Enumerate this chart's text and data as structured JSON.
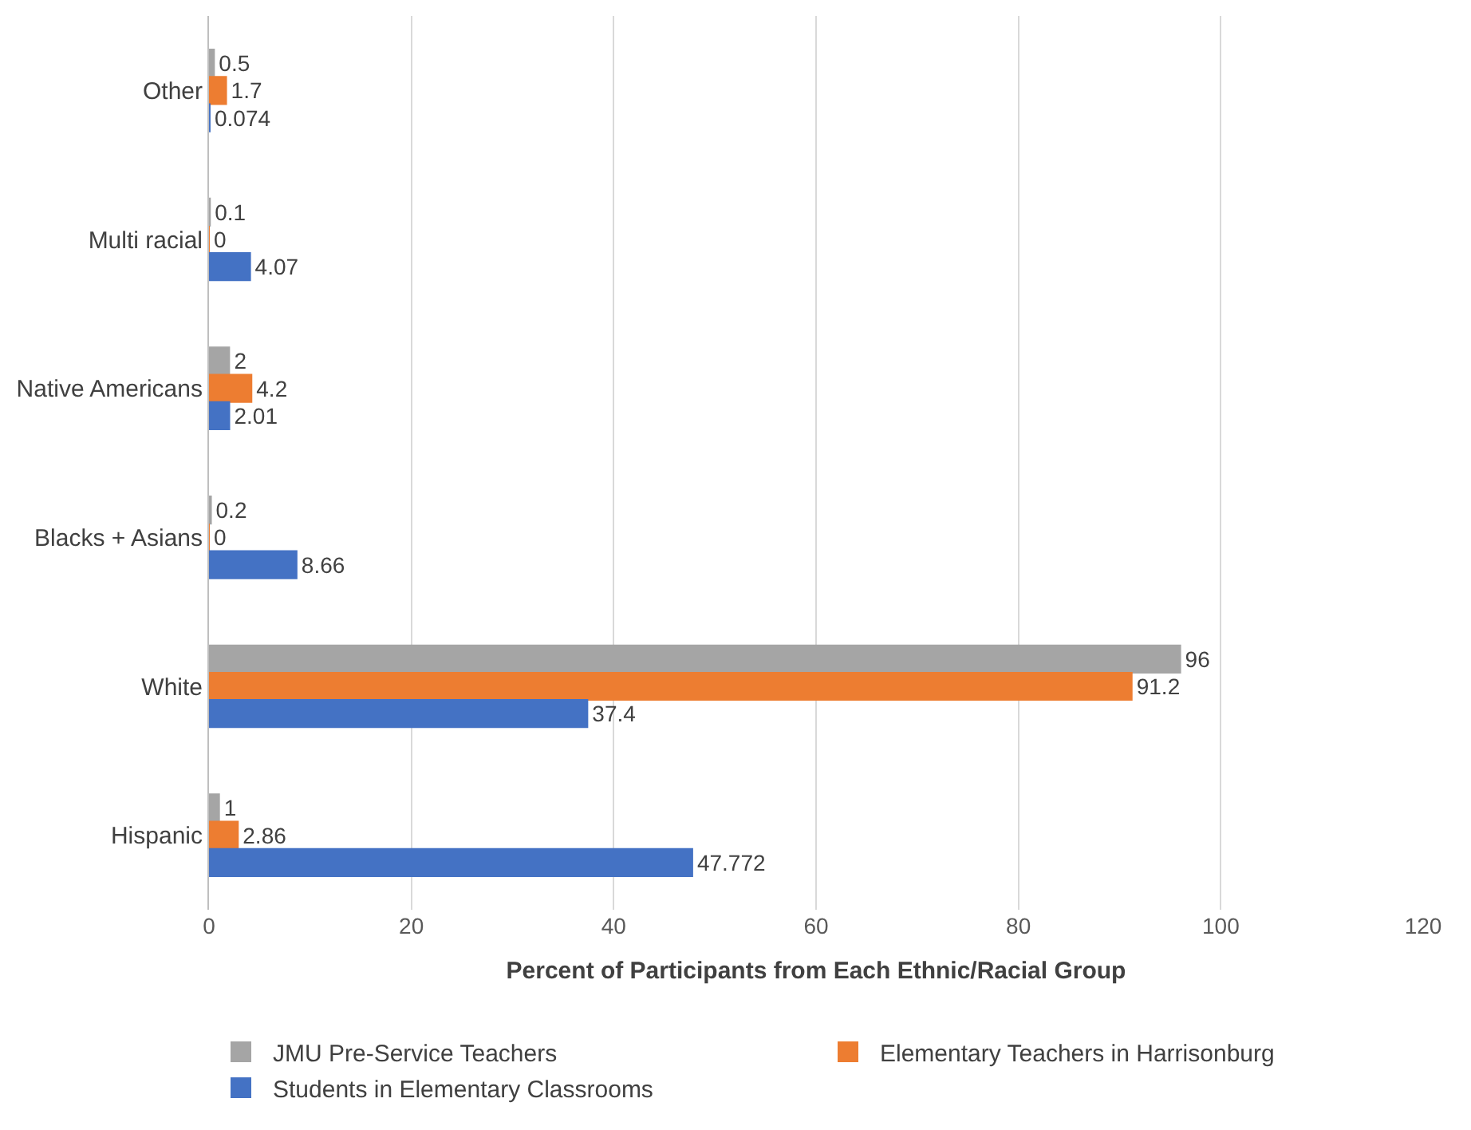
{
  "chart_data": {
    "type": "bar",
    "orientation": "horizontal",
    "xlabel": "Percent of Participants from Each Ethnic/Racial Group",
    "categories": [
      "Other",
      "Multi racial",
      "Native Americans",
      "Blacks + Asians",
      "White",
      "Hispanic"
    ],
    "series": [
      {
        "name": "JMU Pre-Service Teachers",
        "color": "#a5a5a5",
        "values": [
          0.5,
          0.1,
          2,
          0.2,
          96,
          1
        ]
      },
      {
        "name": "Elementary Teachers in Harrisonburg",
        "color": "#ed7d31",
        "values": [
          1.7,
          0,
          4.2,
          0,
          91.2,
          2.86
        ]
      },
      {
        "name": "Students in Elementary Classrooms",
        "color": "#4472c4",
        "values": [
          0.074,
          4.07,
          2.01,
          8.66,
          37.4,
          47.772
        ]
      }
    ],
    "xlim": [
      0,
      120
    ],
    "xticks": [
      0,
      20,
      40,
      60,
      80,
      100,
      120
    ],
    "grid": "x",
    "legend": "bottom",
    "data_labels": true
  }
}
